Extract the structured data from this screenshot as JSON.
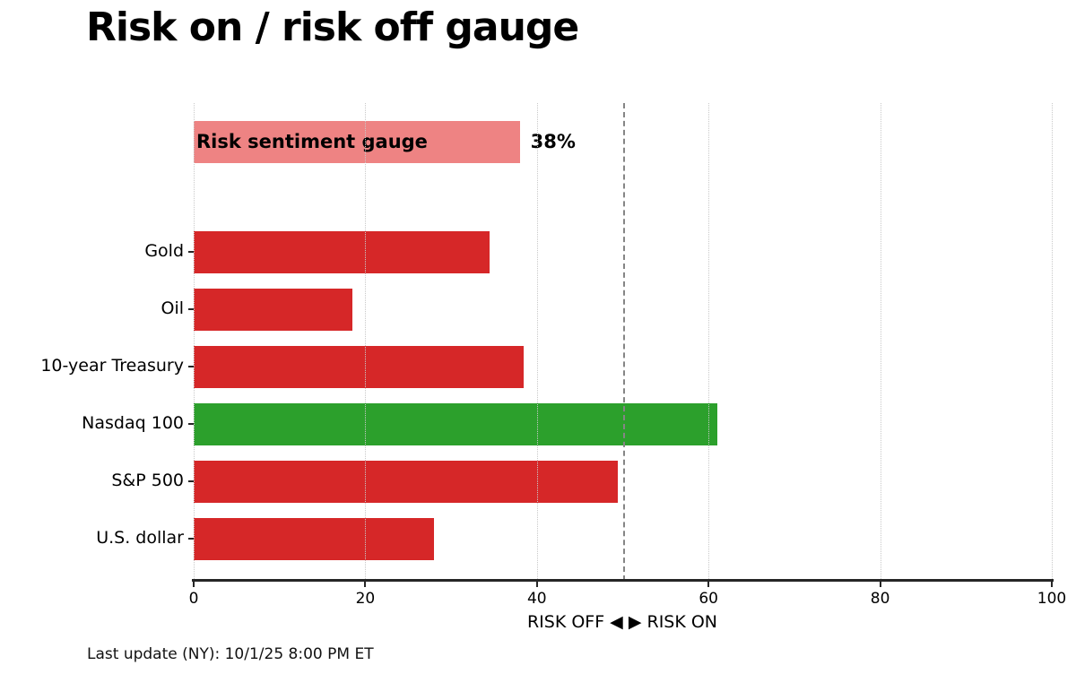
{
  "header": {
    "title": "Risk on / risk off gauge"
  },
  "footer": {
    "last_update": "Last update (NY): 10/1/25 8:00 PM ET"
  },
  "chart_data": {
    "type": "bar",
    "orientation": "horizontal",
    "title": "Risk on / risk off gauge",
    "xlabel": "RISK OFF ◀ ▶ RISK ON",
    "xlim": [
      0,
      100
    ],
    "xticks": [
      0,
      20,
      40,
      60,
      80,
      100
    ],
    "grid": "vertical-dotted",
    "midline": {
      "x": 50,
      "style": "dashed",
      "color": "#858585"
    },
    "gauge": {
      "label": "Risk sentiment gauge",
      "value": 38,
      "value_label": "38%",
      "color": "#ee8383"
    },
    "categories": [
      "Gold",
      "Oil",
      "10-year Treasury",
      "Nasdaq 100",
      "S&P 500",
      "U.S. dollar"
    ],
    "values": [
      34.5,
      18.5,
      38.5,
      61,
      49.4,
      28
    ],
    "bar_colors": [
      "#d62728",
      "#d62728",
      "#d62728",
      "#2ca02c",
      "#d62728",
      "#d62728"
    ],
    "colors": {
      "risk_off": "#d62728",
      "risk_on": "#2ca02c",
      "gridline": "#c9c9c9",
      "axis": "#262626"
    }
  }
}
